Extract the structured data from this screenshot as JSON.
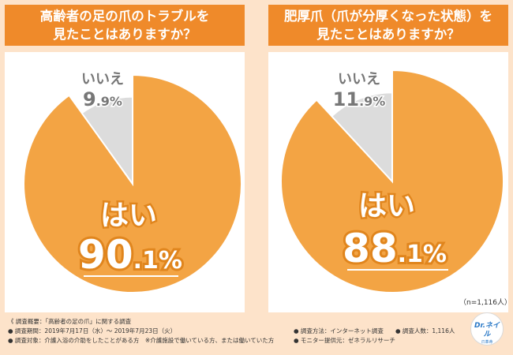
{
  "charts": [
    {
      "title_line1": "高齢者の足の爪のトラブルを",
      "title_line2": "見たことはありますか？",
      "yes_label": "はい",
      "yes_int": "90",
      "yes_dec": ".1%",
      "no_label": "いいえ",
      "no_int": "9",
      "no_dec": ".9%"
    },
    {
      "title_line1": "肥厚爪（爪が分厚くなった状態）を",
      "title_line2": "見たことはありますか？",
      "yes_label": "はい",
      "yes_int": "88",
      "yes_dec": ".1%",
      "no_label": "いいえ",
      "no_int": "11",
      "no_dec": ".9%"
    }
  ],
  "chart_data": [
    {
      "type": "pie",
      "title": "高齢者の足の爪のトラブルを見たことはありますか？",
      "labels": [
        "はい",
        "いいえ"
      ],
      "values": [
        90.1,
        9.9
      ],
      "colors": [
        "#f3a444",
        "#dcdcdc"
      ]
    },
    {
      "type": "pie",
      "title": "肥厚爪（爪が分厚くなった状態）を見たことはありますか？",
      "labels": [
        "はい",
        "いいえ"
      ],
      "values": [
        88.1,
        11.9
      ],
      "colors": [
        "#f3a444",
        "#dcdcdc"
      ]
    }
  ],
  "sample_note": "（n=1,116人）",
  "footer": {
    "overview": "《 調査概要：「高齢者の足の爪」に関する調査",
    "period": "● 調査期間：2019年7月17日（水）～ 2019年7月23日（火）",
    "target": "● 調査対象：介護入浴の介助をしたことがある方　※介護施設で働いている方、または働いていた方",
    "method": "● 調査方法：インターネット調査",
    "count": "● 調査人数：1,116人",
    "provider": "● モニター提供元：ゼネラルリサーチ"
  },
  "logo": {
    "line1": "Dr.ネイル",
    "line2": "爪革命"
  }
}
